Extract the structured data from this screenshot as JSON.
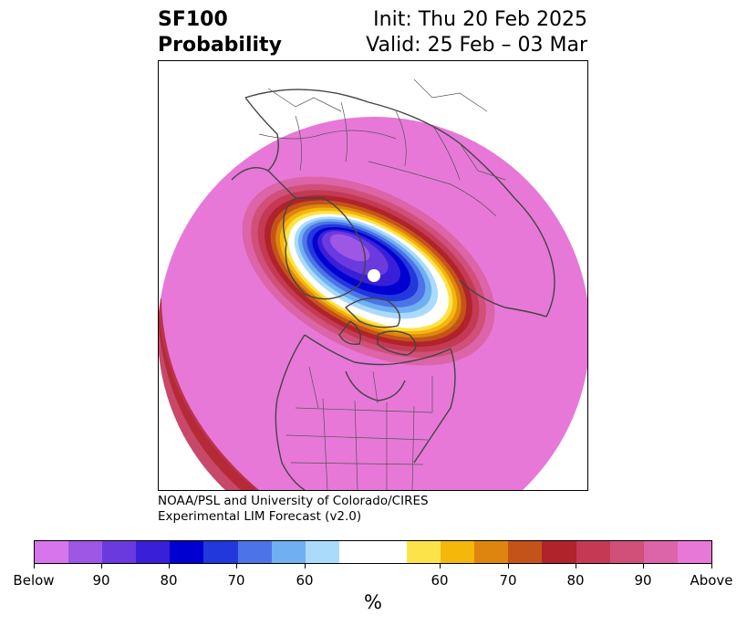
{
  "title": {
    "variable": "SF100",
    "product": "Probability",
    "init": "Init: Thu 20 Feb 2025",
    "valid": "Valid: 25 Feb – 03 Mar"
  },
  "credit": {
    "line1": "NOAA/PSL and University of Colorado/CIRES",
    "line2": "Experimental LIM Forecast (v2.0)"
  },
  "colorbar": {
    "unit": "%",
    "colors": [
      "#d776ec",
      "#9e56e4",
      "#6a3adf",
      "#3a1fd8",
      "#0000d0",
      "#2238dc",
      "#4c74e8",
      "#6faff2",
      "#aadbfb",
      "#ffffff",
      "#ffffff",
      "#fde34a",
      "#f4b70a",
      "#de8510",
      "#c4531a",
      "#b0232a",
      "#c43a54",
      "#d0507a",
      "#dc64a8",
      "#e778d8"
    ],
    "tick_labels": [
      "Below",
      "90",
      "80",
      "70",
      "60",
      "60",
      "70",
      "80",
      "90",
      "Above"
    ]
  },
  "map": {
    "projection": "north-polar-stereographic",
    "background_fill": "#e778d8",
    "anomaly": "Below-normal probability centered over northern Canada / Arctic; above-normal elsewhere"
  }
}
